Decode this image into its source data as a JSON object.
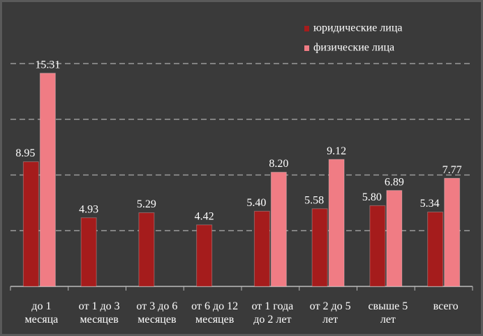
{
  "chart_data": {
    "type": "bar",
    "categories": [
      "до 1\nмесяца",
      "от 1 до 3\nмесяцев",
      "от 3 до 6\nмесяцев",
      "от 6 до 12\nмесяцев",
      "от 1 года\nдо 2 лет",
      "от 2 до 5\nлет",
      "свыше 5\nлет",
      "всего"
    ],
    "series": [
      {
        "name": "юридические лица",
        "color": "#a51c1c",
        "values": [
          8.95,
          4.93,
          5.29,
          4.42,
          5.4,
          5.58,
          5.8,
          5.34
        ],
        "value_labels": [
          "8.95",
          "4.93",
          "5.29",
          "4.42",
          "5.40",
          "5.58",
          "5.80",
          "5.34"
        ]
      },
      {
        "name": "физические лица",
        "color": "#f07c84",
        "values": [
          15.31,
          null,
          null,
          null,
          8.2,
          9.12,
          6.89,
          7.77
        ],
        "value_labels": [
          "15.31",
          null,
          null,
          null,
          "8.20",
          "9.12",
          "6.89",
          "7.77"
        ]
      }
    ],
    "ylim": [
      0,
      16
    ],
    "yticks": [
      0,
      4,
      8,
      12,
      16
    ],
    "grid": true,
    "legend": "top-right"
  }
}
